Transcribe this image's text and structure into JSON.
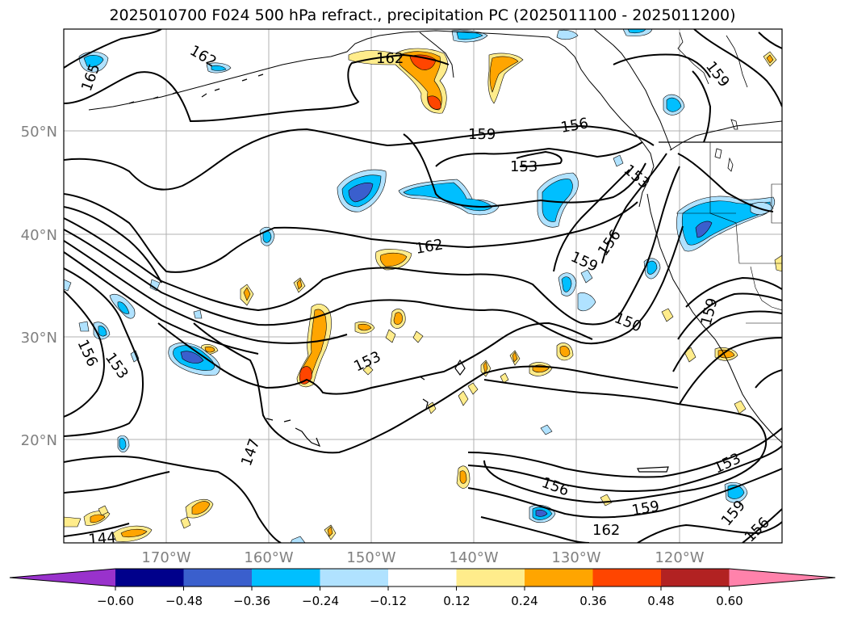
{
  "title": "2025010700 F024 500 hPa refract., precipitation PC (2025011100 - 2025011200)",
  "lon_ticks": [
    "170°W",
    "160°W",
    "150°W",
    "140°W",
    "130°W",
    "120°W"
  ],
  "lat_ticks": [
    "50°N",
    "40°N",
    "30°N",
    "20°N"
  ],
  "contour_labels": [
    "162",
    "165",
    "162",
    "159",
    "159",
    "156",
    "153",
    "153",
    "162",
    "156",
    "159",
    "150",
    "153",
    "156",
    "153",
    "147",
    "159",
    "144",
    "156",
    "159",
    "162",
    "153",
    "159",
    "156"
  ],
  "colorbar": {
    "ticks": [
      "−0.60",
      "−0.48",
      "−0.36",
      "−0.24",
      "−0.12",
      "0.12",
      "0.24",
      "0.36",
      "0.48",
      "0.60"
    ],
    "colors": [
      "#9932cc",
      "#00008b",
      "#3a5fcd",
      "#00bfff",
      "#b0e2ff",
      "#ffffff",
      "#ffec8b",
      "#ffa500",
      "#ff4500",
      "#b22222",
      "#ff82ab"
    ]
  }
}
